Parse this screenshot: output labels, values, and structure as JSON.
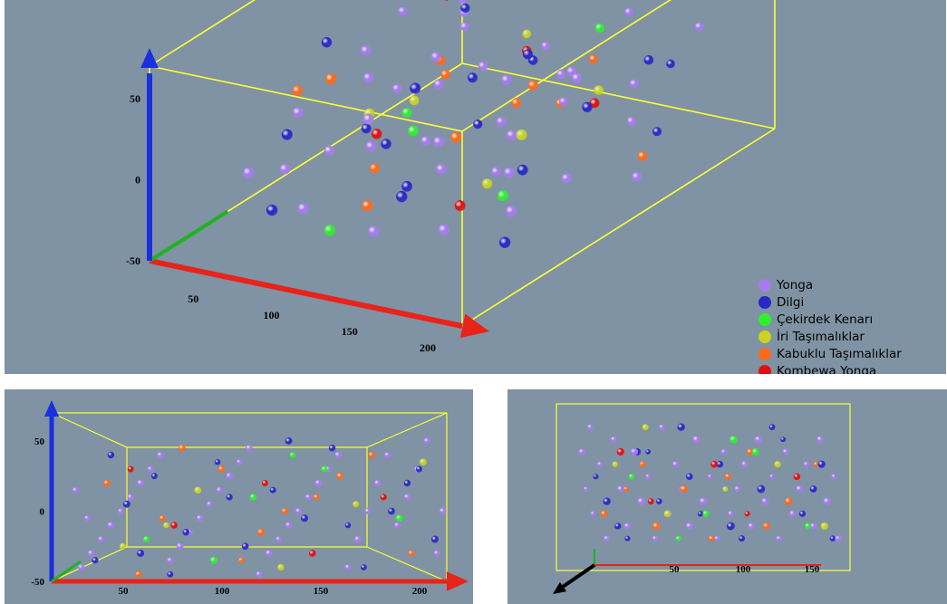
{
  "chart_data": [
    {
      "type": "scatter",
      "view": "perspective",
      "title": "",
      "xlabel": "",
      "ylabel": "",
      "zlabel": "",
      "x_ticks": [
        "50",
        "100",
        "150",
        "200"
      ],
      "z_ticks": [
        "50",
        "0",
        "-50"
      ],
      "xlim": [
        0,
        200
      ],
      "ylim": [
        0,
        120
      ],
      "zlim": [
        -50,
        70
      ],
      "axis_colors": {
        "x": "#e8231a",
        "y": "#1fb31f",
        "z": "#1a2fe0"
      },
      "box_color": "#ffff33",
      "legend": {
        "placement": "bottom-right",
        "entries": [
          {
            "label": "Yonga",
            "color": "#a77bee"
          },
          {
            "label": "Dilgi",
            "color": "#2a27c6"
          },
          {
            "label": "Çekirdek Kenarı",
            "color": "#2ef02e"
          },
          {
            "label": "İri Taşımalıklar",
            "color": "#c8d41e"
          },
          {
            "label": "Kabuklu Taşımalıklar",
            "color": "#ff6a1a"
          },
          {
            "label": "Kombewa Yonga",
            "color": "#e01010"
          }
        ]
      },
      "series": [
        {
          "name": "Yonga",
          "color": "#a77bee",
          "points": [
            [
              15,
              60,
              -40
            ],
            [
              20,
              40,
              -30
            ],
            [
              25,
              80,
              -20
            ],
            [
              30,
              20,
              -10
            ],
            [
              35,
              100,
              0
            ],
            [
              40,
              60,
              10
            ],
            [
              45,
              30,
              20
            ],
            [
              50,
              90,
              30
            ],
            [
              55,
              50,
              40
            ],
            [
              60,
              70,
              -35
            ],
            [
              65,
              20,
              -25
            ],
            [
              70,
              110,
              -15
            ],
            [
              75,
              40,
              -5
            ],
            [
              80,
              80,
              5
            ],
            [
              85,
              60,
              15
            ],
            [
              90,
              30,
              25
            ],
            [
              95,
              100,
              35
            ],
            [
              100,
              50,
              45
            ],
            [
              105,
              70,
              -45
            ],
            [
              110,
              20,
              -30
            ],
            [
              115,
              90,
              -20
            ],
            [
              120,
              40,
              -10
            ],
            [
              125,
              60,
              0
            ],
            [
              130,
              80,
              10
            ],
            [
              135,
              30,
              20
            ],
            [
              140,
              100,
              30
            ],
            [
              145,
              50,
              40
            ],
            [
              150,
              70,
              -40
            ],
            [
              155,
              20,
              -20
            ],
            [
              160,
              90,
              0
            ],
            [
              165,
              40,
              20
            ],
            [
              170,
              60,
              40
            ],
            [
              175,
              80,
              -10
            ],
            [
              180,
              30,
              10
            ],
            [
              185,
              100,
              30
            ],
            [
              190,
              50,
              50
            ],
            [
              195,
              70,
              -30
            ],
            [
              198,
              20,
              0
            ],
            [
              12,
              90,
              15
            ],
            [
              18,
              110,
              -5
            ]
          ]
        },
        {
          "name": "Dilgi",
          "color": "#2a27c6",
          "points": [
            [
              22,
              70,
              -35
            ],
            [
              38,
              30,
              5
            ],
            [
              52,
              90,
              25
            ],
            [
              68,
              50,
              -15
            ],
            [
              84,
              110,
              35
            ],
            [
              98,
              40,
              -25
            ],
            [
              112,
              80,
              15
            ],
            [
              128,
              20,
              -5
            ],
            [
              142,
              60,
              45
            ],
            [
              158,
              100,
              -40
            ],
            [
              172,
              40,
              0
            ],
            [
              186,
              80,
              30
            ],
            [
              194,
              20,
              -20
            ],
            [
              30,
              50,
              40
            ],
            [
              60,
              90,
              -45
            ],
            [
              90,
              70,
              10
            ],
            [
              120,
              30,
              50
            ],
            [
              150,
              110,
              -10
            ],
            [
              180,
              60,
              20
            ],
            [
              45,
              20,
              -30
            ]
          ]
        },
        {
          "name": "Çekirdek Kenarı",
          "color": "#2ef02e",
          "points": [
            [
              48,
              70,
              -20
            ],
            [
              102,
              40,
              10
            ],
            [
              138,
              90,
              30
            ],
            [
              176,
              30,
              -5
            ],
            [
              82,
              20,
              -35
            ],
            [
              122,
              100,
              40
            ]
          ]
        },
        {
          "name": "İri Taşımalıklar",
          "color": "#c8d41e",
          "points": [
            [
              36,
              80,
              -25
            ],
            [
              74,
              40,
              15
            ],
            [
              116,
              60,
              -40
            ],
            [
              154,
              80,
              5
            ],
            [
              188,
              30,
              35
            ],
            [
              58,
              110,
              -10
            ]
          ]
        },
        {
          "name": "Kabuklu Taşımalıklar",
          "color": "#ff6a1a",
          "points": [
            [
              28,
              40,
              20
            ],
            [
              56,
              80,
              -5
            ],
            [
              86,
              60,
              30
            ],
            [
              106,
              20,
              -15
            ],
            [
              134,
              90,
              10
            ],
            [
              162,
              50,
              40
            ],
            [
              182,
              80,
              -30
            ],
            [
              66,
              30,
              45
            ],
            [
              96,
              100,
              -35
            ],
            [
              146,
              30,
              25
            ],
            [
              118,
              70,
              0
            ],
            [
              44,
              60,
              -45
            ]
          ]
        },
        {
          "name": "Kombewa Yonga",
          "color": "#e01010",
          "points": [
            [
              62,
              50,
              -10
            ],
            [
              108,
              80,
              20
            ],
            [
              132,
              40,
              -30
            ],
            [
              168,
              70,
              10
            ],
            [
              40,
              90,
              30
            ]
          ]
        }
      ]
    },
    {
      "type": "scatter",
      "view": "side",
      "title": "",
      "xlabel": "",
      "ylabel": "",
      "x_ticks": [
        "50",
        "100",
        "150",
        "200"
      ],
      "y_ticks": [
        "50",
        "0",
        "-50"
      ],
      "xlim": [
        0,
        200
      ],
      "ylim": [
        -50,
        70
      ]
    },
    {
      "type": "scatter",
      "view": "front",
      "title": "",
      "xlabel": "",
      "ylabel": "",
      "x_ticks": [
        "50",
        "100",
        "150"
      ],
      "xlim": [
        0,
        200
      ],
      "ylim": [
        0,
        120
      ]
    }
  ]
}
